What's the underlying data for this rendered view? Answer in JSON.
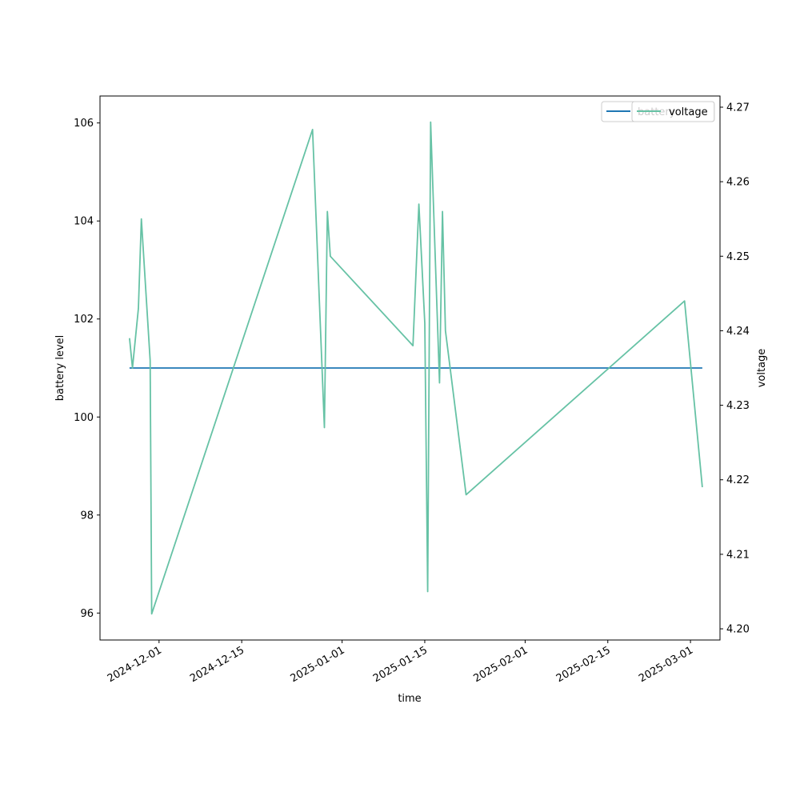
{
  "chart_data": {
    "type": "line",
    "xlabel": "time",
    "ylabel": "battery level",
    "y2label": "voltage",
    "x_tick_labels": [
      "2024-12-01",
      "2024-12-15",
      "2025-01-01",
      "2025-01-15",
      "2025-02-01",
      "2025-02-15",
      "2025-03-01"
    ],
    "y_ticks": [
      96,
      98,
      100,
      102,
      104,
      106
    ],
    "y2_ticks": [
      4.2,
      4.21,
      4.22,
      4.23,
      4.24,
      4.25,
      4.26,
      4.27
    ],
    "xlim": [
      "2024-11-21",
      "2025-03-06"
    ],
    "ylim": [
      95.45,
      106.55
    ],
    "y2lim": [
      4.1985,
      4.2715
    ],
    "grid": false,
    "legend_position": "upper-right",
    "series": [
      {
        "name": "battery",
        "axis": "left",
        "color": "#1f77b4",
        "x": [
          "2024-11-26",
          "2025-03-03"
        ],
        "y": [
          101,
          101
        ]
      },
      {
        "name": "voltage",
        "axis": "right",
        "color": "#66c2a5",
        "x": [
          "2024-11-26",
          "2024-11-26T12:00",
          "2024-11-27T12:00",
          "2024-11-28",
          "2024-11-29T12:00",
          "2024-11-29T18:00",
          "2024-12-27",
          "2024-12-29",
          "2024-12-29T12:00",
          "2024-12-30",
          "2025-01-13",
          "2025-01-14",
          "2025-01-15",
          "2025-01-15T12:00",
          "2025-01-16",
          "2025-01-17T12:00",
          "2025-01-18",
          "2025-01-18T12:00",
          "2025-01-22",
          "2025-02-28",
          "2025-03-03"
        ],
        "y": [
          4.239,
          4.235,
          4.243,
          4.255,
          4.236,
          4.202,
          4.267,
          4.227,
          4.256,
          4.25,
          4.238,
          4.257,
          4.241,
          4.205,
          4.268,
          4.233,
          4.256,
          4.24,
          4.218,
          4.244,
          4.219
        ]
      }
    ]
  }
}
